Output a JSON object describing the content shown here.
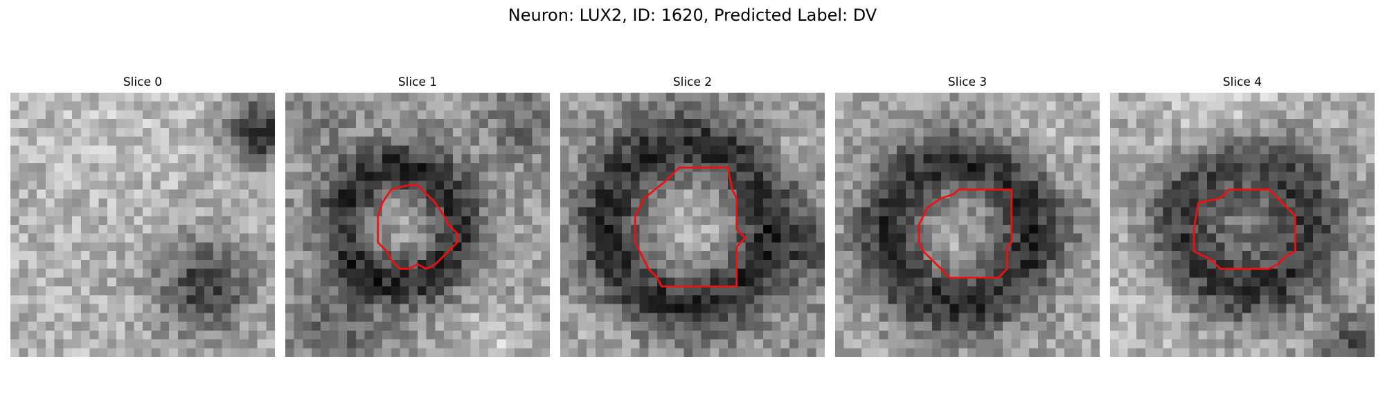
{
  "figure": {
    "title": "Neuron: LUX2, ID: 1620, Predicted Label: DV"
  },
  "panels": [
    {
      "title": "Slice 0"
    },
    {
      "title": "Slice 1"
    },
    {
      "title": "Slice 2"
    },
    {
      "title": "Slice 3"
    },
    {
      "title": "Slice 4"
    }
  ],
  "colors": {
    "contour": "#ee1111",
    "colormap": "grayscale"
  }
}
